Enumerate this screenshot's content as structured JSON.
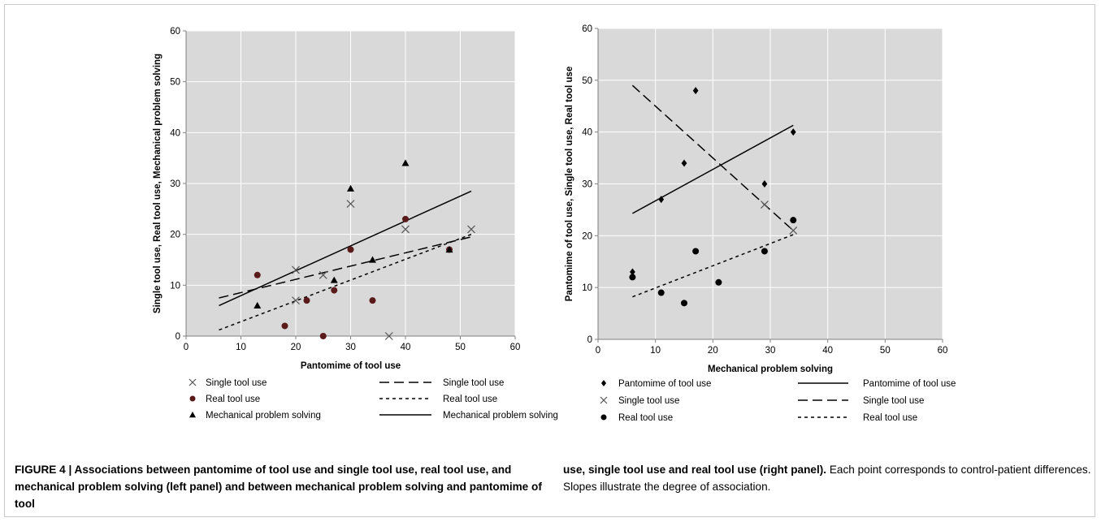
{
  "chart_data": [
    {
      "type": "scatter",
      "xlabel": "Pantomime of tool use",
      "ylabel": "Single tool use, Real tool use, Mechanical problem solving",
      "xlim": [
        0,
        60
      ],
      "ylim": [
        0,
        60
      ],
      "xticks": [
        0,
        10,
        20,
        30,
        40,
        50,
        60
      ],
      "yticks": [
        0,
        10,
        20,
        30,
        40,
        50,
        60
      ],
      "grid": true,
      "legend_location": "bottom",
      "series": [
        {
          "name": "Single tool use",
          "marker": "cross",
          "color": "#555555",
          "points": [
            [
              20,
              13
            ],
            [
              20,
              7
            ],
            [
              25,
              12
            ],
            [
              30,
              26
            ],
            [
              37,
              0
            ],
            [
              40,
              21
            ],
            [
              52,
              21
            ]
          ]
        },
        {
          "name": "Real tool use",
          "marker": "circle",
          "color": "#5a1a1a",
          "points": [
            [
              13,
              12
            ],
            [
              18,
              2
            ],
            [
              22,
              7
            ],
            [
              25,
              0
            ],
            [
              27,
              9
            ],
            [
              30,
              17
            ],
            [
              34,
              7
            ],
            [
              40,
              23
            ],
            [
              48,
              17
            ]
          ]
        },
        {
          "name": "Mechanical problem solving",
          "marker": "triangle",
          "color": "#000000",
          "points": [
            [
              13,
              6
            ],
            [
              27,
              11
            ],
            [
              30,
              29
            ],
            [
              34,
              15
            ],
            [
              40,
              34
            ],
            [
              48,
              17
            ]
          ]
        }
      ],
      "trendlines": [
        {
          "name": "Single tool use",
          "dash": "long",
          "from": [
            6,
            7.5
          ],
          "to": [
            52,
            19.5
          ]
        },
        {
          "name": "Real tool use",
          "dash": "short",
          "from": [
            6,
            1.2
          ],
          "to": [
            52,
            20
          ]
        },
        {
          "name": "Mechanical problem solving",
          "dash": "solid",
          "from": [
            6,
            6
          ],
          "to": [
            52,
            28.5
          ]
        }
      ]
    },
    {
      "type": "scatter",
      "xlabel": "Mechanical problem solving",
      "ylabel": "Pantomime of tool use, Single tool use, Real tool use",
      "xlim": [
        0,
        60
      ],
      "ylim": [
        0,
        60
      ],
      "xticks": [
        0,
        10,
        20,
        30,
        40,
        50,
        60
      ],
      "yticks": [
        0,
        10,
        20,
        30,
        40,
        50,
        60
      ],
      "grid": true,
      "legend_location": "bottom",
      "series": [
        {
          "name": "Pantomime of tool use",
          "marker": "diamond",
          "color": "#000000",
          "points": [
            [
              6,
              13
            ],
            [
              11,
              27
            ],
            [
              15,
              34
            ],
            [
              17,
              48
            ],
            [
              29,
              30
            ],
            [
              34,
              40
            ]
          ]
        },
        {
          "name": "Single tool use",
          "marker": "cross",
          "color": "#555555",
          "points": [
            [
              29,
              26
            ],
            [
              34,
              21
            ]
          ]
        },
        {
          "name": "Real tool use",
          "marker": "circle",
          "color": "#000000",
          "points": [
            [
              6,
              12
            ],
            [
              11,
              9
            ],
            [
              15,
              7
            ],
            [
              17,
              17
            ],
            [
              21,
              11
            ],
            [
              29,
              17
            ],
            [
              34,
              23
            ]
          ]
        }
      ],
      "trendlines": [
        {
          "name": "Pantomime of tool use",
          "dash": "solid",
          "from": [
            6,
            24.3
          ],
          "to": [
            34,
            41.3
          ]
        },
        {
          "name": "Single tool use",
          "dash": "long",
          "from": [
            6,
            49
          ],
          "to": [
            34,
            21
          ]
        },
        {
          "name": "Real tool use",
          "dash": "short",
          "from": [
            6,
            8.2
          ],
          "to": [
            34,
            20.2
          ]
        }
      ]
    }
  ],
  "caption": {
    "left_bold": "FIGURE 4 | Associations between pantomime of tool use and single tool use, real tool use, and mechanical problem solving (left panel) and between mechanical problem solving and pantomime of tool",
    "right_bold": "use, single tool use and real tool use (right panel).",
    "right_rest": " Each point corresponds to control-patient differences. Slopes illustrate the degree of association."
  }
}
